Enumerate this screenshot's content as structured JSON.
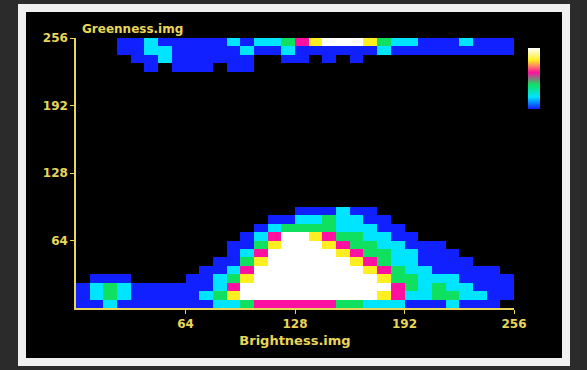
{
  "chart_data": {
    "type": "heatmap",
    "x_label": "Brightness.img",
    "y_label": "Greenness.img",
    "xlim": [
      0,
      256
    ],
    "ylim": [
      0,
      256
    ],
    "xticks": [
      64,
      128,
      192,
      256
    ],
    "yticks": [
      64,
      128,
      192,
      256
    ],
    "zlim": [
      1,
      6
    ],
    "x_bins": [
      0,
      8,
      16,
      24,
      32,
      40,
      48,
      56,
      64,
      72,
      80,
      88,
      96,
      104,
      112,
      120,
      128,
      136,
      144,
      152,
      160,
      168,
      176,
      184,
      192,
      200,
      208,
      216,
      224,
      232,
      240,
      248,
      256
    ],
    "y_bins": [
      0,
      8,
      16,
      24,
      32,
      40,
      48,
      56,
      64,
      72,
      80,
      88,
      96,
      224,
      232,
      240,
      248,
      256
    ],
    "z": [
      [
        1,
        1,
        2,
        1,
        1,
        1,
        1,
        1,
        1,
        1,
        2,
        2,
        3,
        4,
        4,
        4,
        4,
        4,
        4,
        3,
        3,
        2,
        2,
        2,
        1,
        1,
        1,
        2,
        1,
        1,
        1,
        null
      ],
      [
        1,
        2,
        3,
        2,
        1,
        1,
        1,
        1,
        1,
        2,
        3,
        5,
        6,
        6,
        6,
        6,
        6,
        6,
        6,
        6,
        6,
        6,
        5,
        4,
        2,
        2,
        3,
        3,
        2,
        2,
        1,
        1
      ],
      [
        1,
        2,
        3,
        2,
        1,
        1,
        1,
        1,
        1,
        1,
        2,
        4,
        6,
        6,
        6,
        6,
        6,
        6,
        6,
        6,
        6,
        6,
        6,
        4,
        3,
        2,
        3,
        2,
        2,
        1,
        1,
        1
      ],
      [
        null,
        1,
        1,
        1,
        null,
        null,
        null,
        null,
        1,
        1,
        2,
        3,
        5,
        6,
        6,
        6,
        6,
        6,
        6,
        6,
        6,
        6,
        5,
        3,
        3,
        2,
        2,
        2,
        1,
        1,
        1,
        1
      ],
      [
        null,
        null,
        null,
        null,
        null,
        null,
        null,
        null,
        null,
        1,
        1,
        2,
        4,
        6,
        6,
        6,
        6,
        6,
        6,
        6,
        6,
        5,
        4,
        3,
        2,
        2,
        1,
        1,
        1,
        1,
        1,
        null
      ],
      [
        null,
        null,
        null,
        null,
        null,
        null,
        null,
        null,
        null,
        null,
        1,
        1,
        3,
        5,
        6,
        6,
        6,
        6,
        6,
        6,
        5,
        4,
        3,
        2,
        2,
        1,
        1,
        1,
        1,
        null,
        null,
        null
      ],
      [
        null,
        null,
        null,
        null,
        null,
        null,
        null,
        null,
        null,
        null,
        null,
        1,
        2,
        4,
        6,
        6,
        6,
        6,
        6,
        5,
        4,
        3,
        3,
        2,
        2,
        1,
        1,
        1,
        null,
        null,
        null,
        null
      ],
      [
        null,
        null,
        null,
        null,
        null,
        null,
        null,
        null,
        null,
        null,
        null,
        1,
        1,
        3,
        5,
        6,
        6,
        6,
        5,
        4,
        3,
        3,
        2,
        2,
        1,
        1,
        1,
        null,
        null,
        null,
        null,
        null
      ],
      [
        null,
        null,
        null,
        null,
        null,
        null,
        null,
        null,
        null,
        null,
        null,
        null,
        1,
        2,
        4,
        6,
        6,
        5,
        4,
        3,
        3,
        2,
        2,
        1,
        1,
        null,
        null,
        null,
        null,
        null,
        null,
        null
      ],
      [
        null,
        null,
        null,
        null,
        null,
        null,
        null,
        null,
        null,
        null,
        null,
        null,
        null,
        1,
        2,
        3,
        3,
        3,
        3,
        2,
        2,
        2,
        1,
        1,
        null,
        null,
        null,
        null,
        null,
        null,
        null,
        null
      ],
      [
        null,
        null,
        null,
        null,
        null,
        null,
        null,
        null,
        null,
        null,
        null,
        null,
        null,
        null,
        1,
        1,
        2,
        2,
        3,
        2,
        2,
        1,
        1,
        null,
        null,
        null,
        null,
        null,
        null,
        null,
        null,
        null
      ],
      [
        null,
        null,
        null,
        null,
        null,
        null,
        null,
        null,
        null,
        null,
        null,
        null,
        null,
        null,
        null,
        null,
        1,
        1,
        1,
        2,
        1,
        1,
        null,
        null,
        null,
        null,
        null,
        null,
        null,
        null,
        null,
        null
      ],
      [
        null,
        null,
        null,
        null,
        null,
        null,
        null,
        null,
        null,
        null,
        null,
        null,
        null,
        null,
        null,
        null,
        null,
        null,
        null,
        null,
        null,
        null,
        null,
        null,
        null,
        null,
        null,
        null,
        null,
        null,
        null,
        null
      ],
      [
        null,
        null,
        null,
        null,
        null,
        1,
        null,
        1,
        1,
        1,
        null,
        1,
        1,
        null,
        null,
        null,
        null,
        null,
        null,
        null,
        null,
        null,
        null,
        null,
        null,
        null,
        null,
        null,
        null,
        null,
        null,
        null
      ],
      [
        null,
        null,
        null,
        null,
        1,
        1,
        2,
        1,
        1,
        1,
        1,
        1,
        1,
        null,
        null,
        1,
        1,
        null,
        1,
        null,
        1,
        null,
        null,
        null,
        null,
        null,
        null,
        null,
        null,
        null,
        null,
        null
      ],
      [
        null,
        null,
        null,
        1,
        1,
        2,
        2,
        1,
        1,
        1,
        1,
        1,
        2,
        1,
        1,
        2,
        1,
        1,
        1,
        1,
        1,
        1,
        2,
        1,
        1,
        1,
        1,
        1,
        1,
        1,
        1,
        1
      ],
      [
        null,
        null,
        null,
        1,
        1,
        2,
        1,
        1,
        1,
        1,
        1,
        2,
        1,
        2,
        2,
        3,
        4,
        5,
        6,
        6,
        6,
        5,
        3,
        2,
        2,
        1,
        1,
        1,
        2,
        1,
        1,
        1
      ]
    ]
  }
}
